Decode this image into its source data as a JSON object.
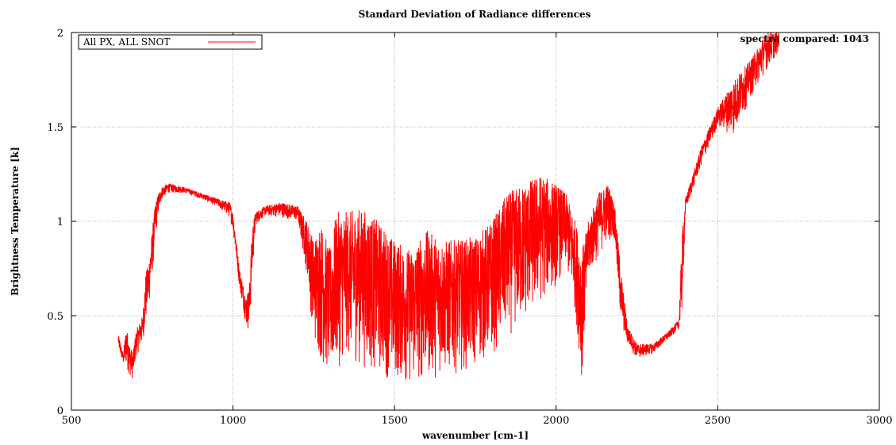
{
  "chart_data": {
    "type": "line",
    "title": "Standard Deviation of Radiance differences",
    "xlabel": "wavenumber [cm-1]",
    "ylabel": "Brightness Temperature [k]",
    "xlim": [
      500,
      3000
    ],
    "ylim": [
      0,
      2
    ],
    "xticks": [
      500,
      1000,
      1500,
      2000,
      2500,
      3000
    ],
    "xtick_labels": [
      "500",
      "1000",
      "1500",
      "2000",
      "2500",
      "3000"
    ],
    "yticks": [
      0,
      0.5,
      1,
      1.5,
      2
    ],
    "ytick_labels": [
      "0",
      "0.5",
      "1",
      "1.5",
      "2"
    ],
    "grid": true,
    "legend_position": "top-left",
    "annotation": "spectra compared: 1043",
    "series": [
      {
        "name": "All PX, ALL SNOT",
        "color": "#ff0000",
        "envelope": [
          [
            645,
            0.33,
            0.4
          ],
          [
            660,
            0.24,
            0.3
          ],
          [
            670,
            0.22,
            0.45
          ],
          [
            680,
            0.18,
            0.35
          ],
          [
            690,
            0.16,
            0.3
          ],
          [
            700,
            0.28,
            0.42
          ],
          [
            720,
            0.35,
            0.5
          ],
          [
            730,
            0.45,
            0.72
          ],
          [
            740,
            0.55,
            0.8
          ],
          [
            750,
            0.7,
            0.95
          ],
          [
            760,
            0.9,
            1.1
          ],
          [
            770,
            1.05,
            1.15
          ],
          [
            780,
            1.12,
            1.18
          ],
          [
            800,
            1.15,
            1.2
          ],
          [
            850,
            1.15,
            1.18
          ],
          [
            900,
            1.12,
            1.15
          ],
          [
            950,
            1.08,
            1.12
          ],
          [
            990,
            1.02,
            1.1
          ],
          [
            1000,
            0.95,
            1.05
          ],
          [
            1010,
            0.8,
            0.9
          ],
          [
            1020,
            0.65,
            0.75
          ],
          [
            1040,
            0.45,
            0.6
          ],
          [
            1050,
            0.4,
            0.65
          ],
          [
            1060,
            0.7,
            0.98
          ],
          [
            1070,
            0.98,
            1.05
          ],
          [
            1100,
            1.03,
            1.08
          ],
          [
            1150,
            1.02,
            1.1
          ],
          [
            1200,
            1.0,
            1.08
          ],
          [
            1230,
            0.7,
            1.0
          ],
          [
            1250,
            0.35,
            0.9
          ],
          [
            1270,
            0.25,
            1.0
          ],
          [
            1300,
            0.15,
            0.85
          ],
          [
            1320,
            0.2,
            1.05
          ],
          [
            1350,
            0.28,
            1.05
          ],
          [
            1400,
            0.22,
            1.07
          ],
          [
            1450,
            0.18,
            1.0
          ],
          [
            1500,
            0.15,
            0.9
          ],
          [
            1550,
            0.12,
            0.85
          ],
          [
            1600,
            0.15,
            0.95
          ],
          [
            1650,
            0.18,
            0.9
          ],
          [
            1700,
            0.2,
            0.9
          ],
          [
            1750,
            0.22,
            0.92
          ],
          [
            1800,
            0.28,
            1.0
          ],
          [
            1850,
            0.38,
            1.15
          ],
          [
            1900,
            0.45,
            1.2
          ],
          [
            1950,
            0.55,
            1.25
          ],
          [
            2000,
            0.65,
            1.2
          ],
          [
            2030,
            0.75,
            1.15
          ],
          [
            2060,
            0.5,
            1.0
          ],
          [
            2080,
            0.15,
            0.85
          ],
          [
            2100,
            0.7,
            1.0
          ],
          [
            2130,
            0.8,
            1.15
          ],
          [
            2160,
            0.9,
            1.2
          ],
          [
            2180,
            0.9,
            1.1
          ],
          [
            2200,
            0.45,
            0.75
          ],
          [
            2220,
            0.35,
            0.45
          ],
          [
            2250,
            0.27,
            0.35
          ],
          [
            2300,
            0.3,
            0.35
          ],
          [
            2350,
            0.38,
            0.42
          ],
          [
            2380,
            0.43,
            0.48
          ],
          [
            2390,
            0.5,
            0.95
          ],
          [
            2400,
            1.05,
            1.12
          ],
          [
            2450,
            1.3,
            1.4
          ],
          [
            2500,
            1.5,
            1.6
          ],
          [
            2550,
            1.45,
            1.75
          ],
          [
            2600,
            1.65,
            1.85
          ],
          [
            2650,
            1.8,
            2.0
          ],
          [
            2690,
            1.9,
            2.0
          ]
        ]
      }
    ]
  }
}
